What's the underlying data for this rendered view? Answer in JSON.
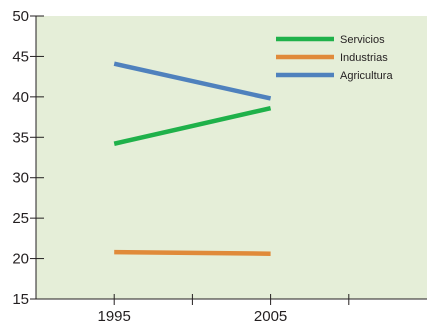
{
  "chart_data": {
    "type": "line",
    "x": [
      1995,
      2005
    ],
    "xlim": [
      1990,
      2015
    ],
    "ylim": [
      15,
      50
    ],
    "xticks": [
      1995,
      2000,
      2005,
      2010
    ],
    "xtick_labels": [
      "1995",
      "",
      "2005",
      ""
    ],
    "yticks": [
      15,
      20,
      25,
      30,
      35,
      40,
      45,
      50
    ],
    "ytick_labels": [
      "15",
      "20",
      "25",
      "30",
      "35",
      "40",
      "45",
      "50"
    ],
    "grid": false,
    "legend_position": "top-right",
    "background_color": "#e5eed8",
    "series": [
      {
        "name": "Servicios",
        "color": "#1fb14a",
        "values": [
          34.2,
          38.6
        ]
      },
      {
        "name": "Industrias",
        "color": "#e08a3a",
        "values": [
          20.8,
          20.6
        ]
      },
      {
        "name": "Agricultura",
        "color": "#4f81bd",
        "values": [
          44.1,
          39.8
        ]
      }
    ]
  }
}
